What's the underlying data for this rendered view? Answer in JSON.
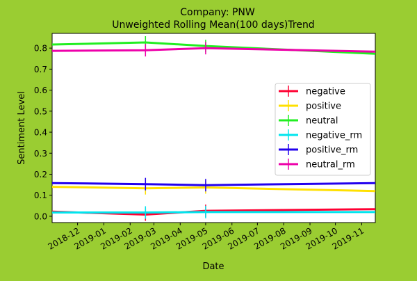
{
  "chart_data": {
    "type": "line",
    "title": "Company: PNW\nUnweighted Rolling Mean(100 days)Trend",
    "xlabel": "Date",
    "ylabel": "Sentiment Level",
    "xlim": [
      "2018-11-01",
      "2019-11-17"
    ],
    "ylim": [
      -0.03,
      0.87
    ],
    "x_ticks": [
      "2018-12",
      "2019-01",
      "2019-02",
      "2019-03",
      "2019-04",
      "2019-05",
      "2019-06",
      "2019-07",
      "2019-08",
      "2019-09",
      "2019-10",
      "2019-11"
    ],
    "y_ticks": [
      0.0,
      0.1,
      0.2,
      0.3,
      0.4,
      0.5,
      0.6,
      0.7,
      0.8
    ],
    "grid": false,
    "legend_position": "center-right",
    "series": [
      {
        "name": "negative",
        "color": "#ff0033",
        "x": [
          "2018-11-01",
          "2019-02-19",
          "2019-05-01",
          "2019-11-17"
        ],
        "y": [
          0.022,
          0.008,
          0.026,
          0.034
        ]
      },
      {
        "name": "positive",
        "color": "#ffe000",
        "x": [
          "2018-11-01",
          "2019-02-19",
          "2019-05-01",
          "2019-11-17"
        ],
        "y": [
          0.14,
          0.133,
          0.137,
          0.12
        ]
      },
      {
        "name": "neutral",
        "color": "#22ee22",
        "x": [
          "2018-11-01",
          "2019-02-19",
          "2019-05-01",
          "2019-11-17"
        ],
        "y": [
          0.817,
          0.827,
          0.81,
          0.773
        ]
      },
      {
        "name": "negative_rm",
        "color": "#00e5ee",
        "x": [
          "2018-11-01",
          "2019-02-19",
          "2019-05-01",
          "2019-11-17"
        ],
        "y": [
          0.018,
          0.018,
          0.02,
          0.02
        ]
      },
      {
        "name": "positive_rm",
        "color": "#2200ee",
        "x": [
          "2018-11-01",
          "2019-02-19",
          "2019-05-01",
          "2019-11-17"
        ],
        "y": [
          0.158,
          0.153,
          0.148,
          0.158
        ]
      },
      {
        "name": "neutral_rm",
        "color": "#ee00aa",
        "x": [
          "2018-11-01",
          "2019-02-19",
          "2019-05-01",
          "2019-11-17"
        ],
        "y": [
          0.787,
          0.79,
          0.8,
          0.783
        ]
      }
    ]
  }
}
